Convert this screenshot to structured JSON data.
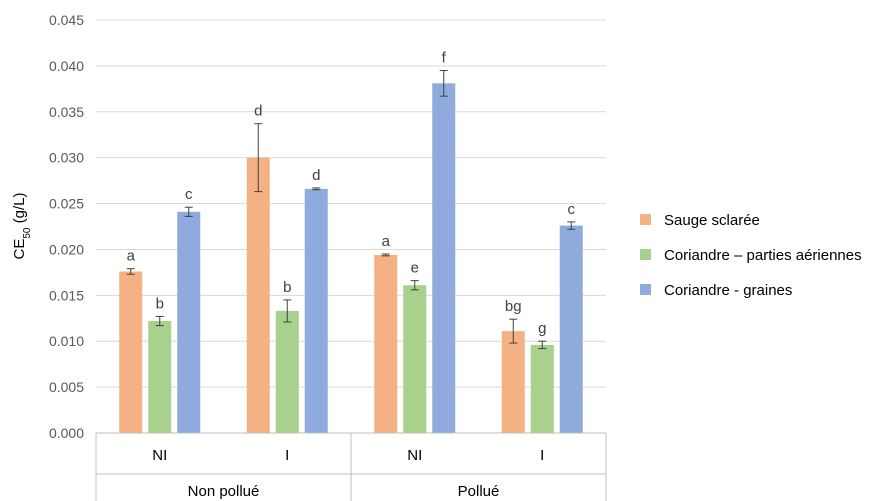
{
  "chart_data": {
    "type": "bar",
    "ylabel_base": "CE",
    "ylabel_sub": "50",
    "ylabel_unit": " (g/L)",
    "ylim": [
      0,
      0.045
    ],
    "yticks": [
      "0.000",
      "0.005",
      "0.010",
      "0.015",
      "0.020",
      "0.025",
      "0.030",
      "0.035",
      "0.040",
      "0.045"
    ],
    "grid": true,
    "legend_position": "right",
    "groups": [
      {
        "label": "Non pollué",
        "categories": [
          "NI",
          "I"
        ]
      },
      {
        "label": "Pollué",
        "categories": [
          "NI",
          "I"
        ]
      }
    ],
    "categories": [
      "NI",
      "I",
      "NI",
      "I"
    ],
    "series": [
      {
        "name": "Sauge sclarée",
        "color": "#f4b183",
        "values": [
          0.0176,
          0.03,
          0.0194,
          0.0111
        ],
        "errors": [
          0.0003,
          0.0037,
          0.0001,
          0.0013
        ],
        "letters": [
          "a",
          "d",
          "a",
          "bg"
        ]
      },
      {
        "name": "Coriandre – parties aériennes",
        "color": "#a9d18e",
        "values": [
          0.0122,
          0.0133,
          0.0161,
          0.0096
        ],
        "errors": [
          0.0005,
          0.0012,
          0.0005,
          0.0004
        ],
        "letters": [
          "b",
          "b",
          "e",
          "g"
        ]
      },
      {
        "name": "Coriandre - graines",
        "color": "#8faadc",
        "values": [
          0.0241,
          0.0266,
          0.0381,
          0.0226
        ],
        "errors": [
          0.0005,
          0.0001,
          0.0014,
          0.0004
        ],
        "letters": [
          "c",
          "d",
          "f",
          "c"
        ]
      }
    ]
  }
}
